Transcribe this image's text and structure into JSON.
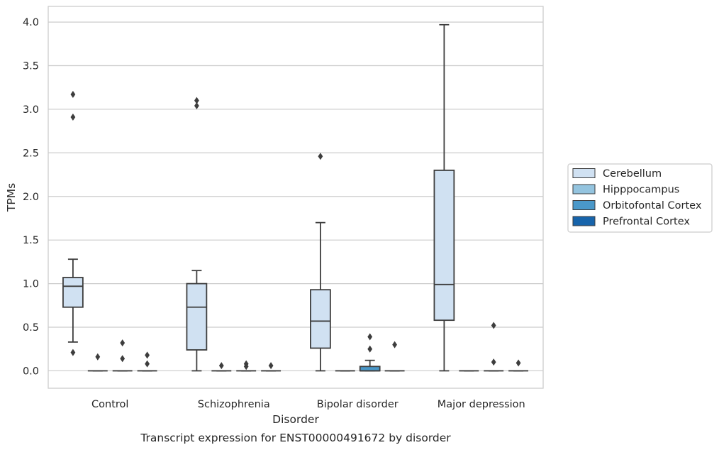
{
  "chart_data": {
    "type": "box",
    "title": "Transcript expression for ENST00000491672 by disorder",
    "xlabel": "Disorder",
    "ylabel": "TPMs",
    "ylim": [
      -0.2,
      4.18
    ],
    "yticks": [
      0.0,
      0.5,
      1.0,
      1.5,
      2.0,
      2.5,
      3.0,
      3.5,
      4.0
    ],
    "ytick_labels": [
      "0.0",
      "0.5",
      "1.0",
      "1.5",
      "2.0",
      "2.5",
      "3.0",
      "3.5",
      "4.0"
    ],
    "categories": [
      "Control",
      "Schizophrenia",
      "Bipolar disorder",
      "Major depression"
    ],
    "grid": "horizontal",
    "legend_position": "right",
    "series": [
      {
        "name": "Cerebellum",
        "color": "#d0e1f2",
        "boxes": [
          {
            "q1": 0.73,
            "median": 0.97,
            "q3": 1.07,
            "whislo": 0.33,
            "whishi": 1.28,
            "fliers": [
              3.17,
              2.91,
              0.21
            ]
          },
          {
            "q1": 0.24,
            "median": 0.73,
            "q3": 1.0,
            "whislo": 0.0,
            "whishi": 1.15,
            "fliers": [
              3.1,
              3.04
            ]
          },
          {
            "q1": 0.26,
            "median": 0.57,
            "q3": 0.93,
            "whislo": 0.0,
            "whishi": 1.7,
            "fliers": [
              2.46
            ]
          },
          {
            "q1": 0.58,
            "median": 0.99,
            "q3": 2.3,
            "whislo": 0.0,
            "whishi": 3.97,
            "fliers": []
          }
        ]
      },
      {
        "name": "Hipppocampus",
        "color": "#94c4df",
        "boxes": [
          {
            "q1": 0.0,
            "median": 0.0,
            "q3": 0.0,
            "whislo": 0.0,
            "whishi": 0.0,
            "fliers": [
              0.16
            ]
          },
          {
            "q1": 0.0,
            "median": 0.0,
            "q3": 0.0,
            "whislo": 0.0,
            "whishi": 0.0,
            "fliers": [
              0.06
            ]
          },
          {
            "q1": 0.0,
            "median": 0.0,
            "q3": 0.0,
            "whislo": 0.0,
            "whishi": 0.0,
            "fliers": []
          },
          {
            "q1": 0.0,
            "median": 0.0,
            "q3": 0.0,
            "whislo": 0.0,
            "whishi": 0.0,
            "fliers": []
          }
        ]
      },
      {
        "name": "Orbitofontal Cortex",
        "color": "#4a98c9",
        "boxes": [
          {
            "q1": 0.0,
            "median": 0.0,
            "q3": 0.0,
            "whislo": 0.0,
            "whishi": 0.0,
            "fliers": [
              0.32,
              0.14
            ]
          },
          {
            "q1": 0.0,
            "median": 0.0,
            "q3": 0.0,
            "whislo": 0.0,
            "whishi": 0.0,
            "fliers": [
              0.08,
              0.05
            ]
          },
          {
            "q1": 0.0,
            "median": 0.0,
            "q3": 0.05,
            "whislo": 0.0,
            "whishi": 0.12,
            "fliers": [
              0.39,
              0.25
            ]
          },
          {
            "q1": 0.0,
            "median": 0.0,
            "q3": 0.0,
            "whislo": 0.0,
            "whishi": 0.0,
            "fliers": [
              0.52,
              0.1
            ]
          }
        ]
      },
      {
        "name": "Prefrontal Cortex",
        "color": "#1764ab",
        "boxes": [
          {
            "q1": 0.0,
            "median": 0.0,
            "q3": 0.0,
            "whislo": 0.0,
            "whishi": 0.0,
            "fliers": [
              0.18,
              0.08
            ]
          },
          {
            "q1": 0.0,
            "median": 0.0,
            "q3": 0.0,
            "whislo": 0.0,
            "whishi": 0.0,
            "fliers": [
              0.06
            ]
          },
          {
            "q1": 0.0,
            "median": 0.0,
            "q3": 0.0,
            "whislo": 0.0,
            "whishi": 0.0,
            "fliers": [
              0.3
            ]
          },
          {
            "q1": 0.0,
            "median": 0.0,
            "q3": 0.0,
            "whislo": 0.0,
            "whishi": 0.0,
            "fliers": [
              0.09
            ]
          }
        ]
      }
    ]
  }
}
